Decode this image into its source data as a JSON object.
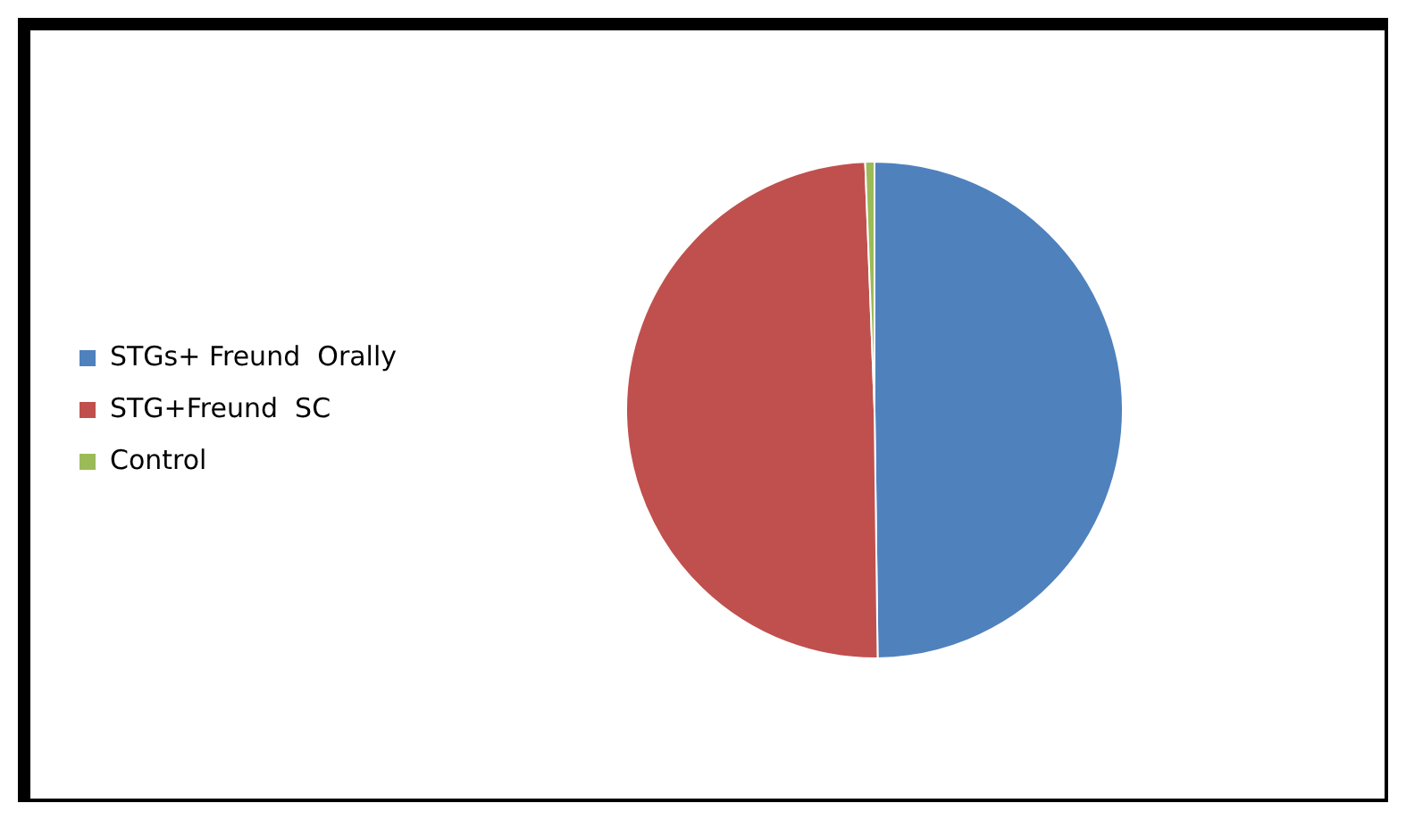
{
  "chart_data": {
    "type": "pie",
    "categories": [
      "STGs+ Freund  Orally",
      "STG+Freund  SC",
      "Control"
    ],
    "values": [
      49.8,
      49.6,
      0.6
    ],
    "colors": [
      "#4f81bd",
      "#c0504d",
      "#9bbb59"
    ],
    "legend": "left"
  }
}
